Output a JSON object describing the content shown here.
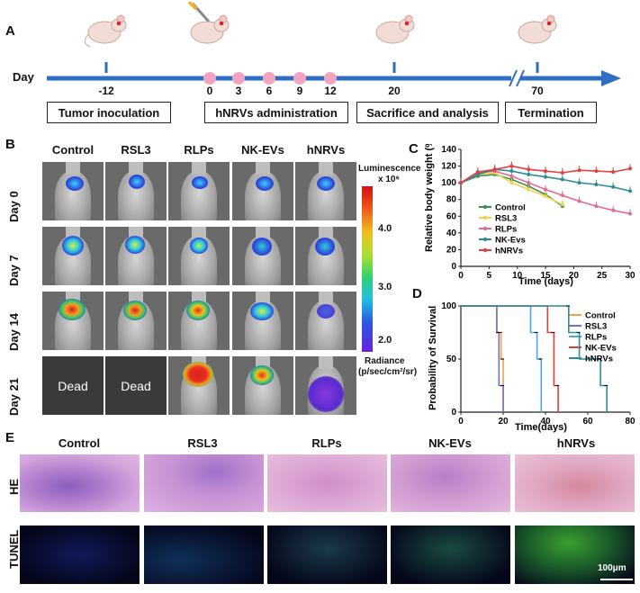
{
  "panels": {
    "A": "A",
    "B": "B",
    "C": "C",
    "D": "D",
    "E": "E"
  },
  "timeline": {
    "day_label": "Day",
    "days": [
      "-12",
      "0",
      "3",
      "6",
      "9",
      "12",
      "20",
      "70"
    ],
    "boxes": [
      "Tumor inoculation",
      "hNRVs administration",
      "Sacrifice and analysis",
      "Termination"
    ],
    "colors": {
      "axis": "#2f6ec2",
      "dot": "#f2a5c0"
    }
  },
  "imaging": {
    "columns": [
      "Control",
      "RSL3",
      "RLPs",
      "NK-EVs",
      "hNRVs"
    ],
    "rows": [
      "Day 0",
      "Day 7",
      "Day 14",
      "Day 21"
    ],
    "dead_label": "Dead",
    "colorbar": {
      "title_line1": "Luminescence",
      "title_line2": "x 10⁶",
      "ticks": [
        "4.0",
        "3.0",
        "2.0"
      ],
      "unit_line1": "Radiance",
      "unit_line2": "(p/sec/cm²/sr)"
    }
  },
  "chart_data": [
    {
      "type": "line",
      "panel": "C",
      "ylabel": "Relative body weight (%)",
      "xlabel": "Time (days)",
      "xlim": [
        0,
        30
      ],
      "ylim": [
        0,
        140
      ],
      "xticks": [
        0,
        5,
        10,
        15,
        20,
        25,
        30
      ],
      "yticks": [
        0,
        20,
        40,
        60,
        80,
        100,
        120,
        140
      ],
      "legend_position": "center-left",
      "series": [
        {
          "name": "Control",
          "color": "#3f8f52",
          "x": [
            0,
            3,
            6,
            9,
            12,
            15,
            18
          ],
          "y": [
            100,
            108,
            110,
            104,
            96,
            86,
            72
          ]
        },
        {
          "name": "RSL3",
          "color": "#f2d24a",
          "x": [
            0,
            3,
            6,
            9,
            12,
            15,
            18
          ],
          "y": [
            100,
            110,
            112,
            100,
            92,
            84,
            74
          ]
        },
        {
          "name": "RLPs",
          "color": "#e06a98",
          "x": [
            0,
            3,
            6,
            9,
            12,
            15,
            18,
            21,
            24,
            27,
            30
          ],
          "y": [
            100,
            112,
            114,
            108,
            100,
            92,
            85,
            78,
            72,
            67,
            63
          ]
        },
        {
          "name": "NK-Evs",
          "color": "#2f8a9a",
          "x": [
            0,
            3,
            6,
            9,
            12,
            15,
            18,
            21,
            24,
            27,
            30
          ],
          "y": [
            100,
            110,
            116,
            114,
            110,
            107,
            104,
            100,
            98,
            95,
            90
          ]
        },
        {
          "name": "hNRVs",
          "color": "#e2403c",
          "x": [
            0,
            3,
            6,
            9,
            12,
            15,
            18,
            21,
            24,
            27,
            30
          ],
          "y": [
            100,
            113,
            116,
            120,
            116,
            114,
            112,
            115,
            114,
            113,
            117
          ]
        }
      ]
    },
    {
      "type": "line",
      "panel": "D",
      "ylabel": "Probability of Survival",
      "xlabel": "Time(days)",
      "xlim": [
        0,
        80
      ],
      "ylim": [
        0,
        100
      ],
      "xticks": [
        0,
        20,
        40,
        60,
        80
      ],
      "yticks": [
        0,
        50,
        100
      ],
      "legend_position": "right",
      "series": [
        {
          "name": "Control",
          "color": "#f0a640",
          "x": [
            0,
            17,
            17,
            19,
            19,
            20,
            20
          ],
          "y": [
            100,
            100,
            75,
            75,
            50,
            50,
            0
          ]
        },
        {
          "name": "RSL3",
          "color": "#7a6cc8",
          "x": [
            0,
            17,
            17,
            18,
            18,
            20,
            20
          ],
          "y": [
            100,
            100,
            75,
            75,
            25,
            25,
            0
          ]
        },
        {
          "name": "RLPs",
          "color": "#4aa8e0",
          "x": [
            0,
            33,
            33,
            36,
            36,
            38,
            38
          ],
          "y": [
            100,
            100,
            75,
            75,
            50,
            50,
            0
          ]
        },
        {
          "name": "NK-EVs",
          "color": "#e2403c",
          "x": [
            0,
            41,
            41,
            44,
            44,
            46,
            46
          ],
          "y": [
            100,
            100,
            75,
            75,
            25,
            25,
            0
          ]
        },
        {
          "name": "hNRVs",
          "color": "#2f8a9a",
          "x": [
            0,
            51,
            51,
            56,
            56,
            66,
            66,
            69,
            69
          ],
          "y": [
            100,
            100,
            75,
            75,
            50,
            50,
            25,
            25,
            0
          ]
        }
      ]
    }
  ],
  "histology": {
    "columns": [
      "Control",
      "RSL3",
      "RLPs",
      "NK-EVs",
      "hNRVs"
    ],
    "rows": [
      "HE",
      "TUNEL"
    ],
    "scale_bar": "100μm"
  }
}
